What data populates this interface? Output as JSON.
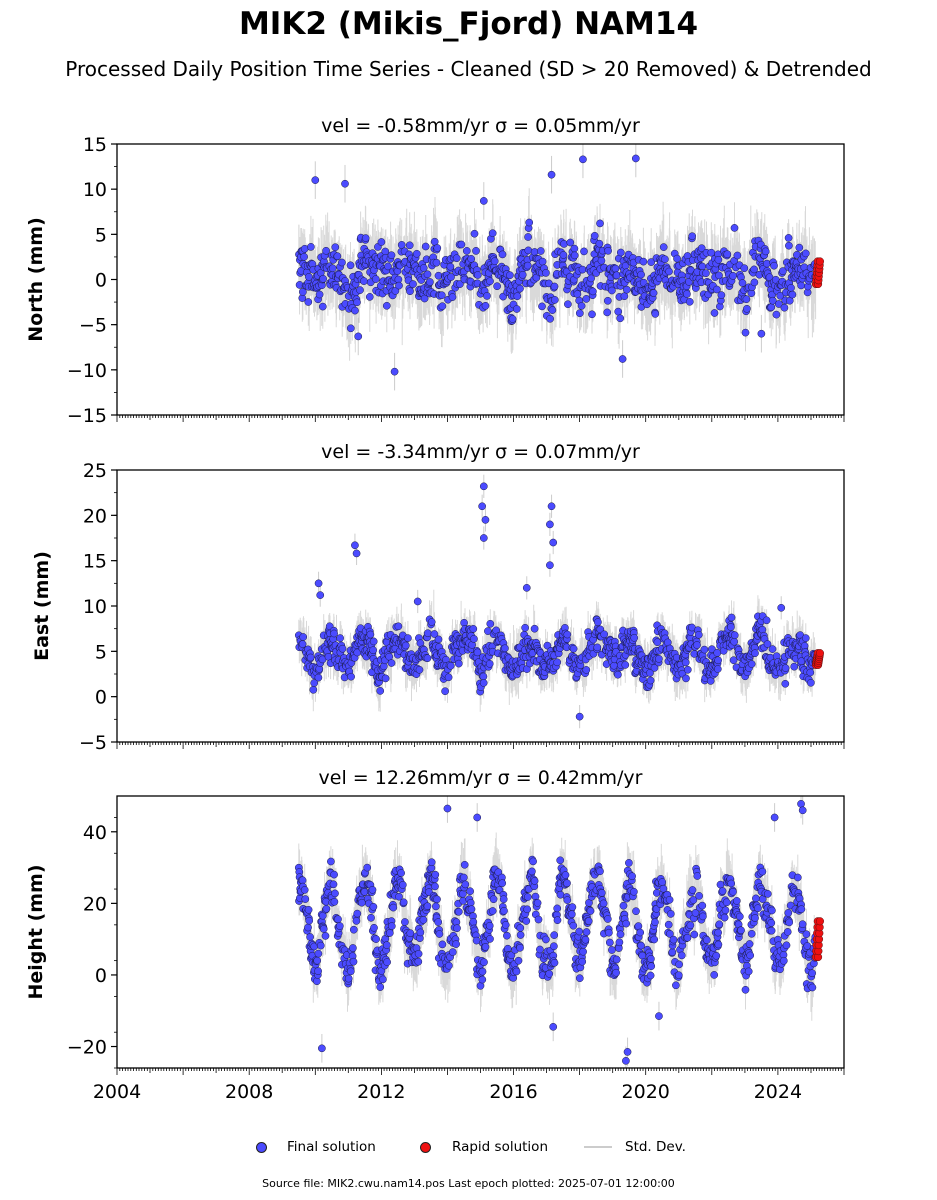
{
  "title": "MIK2 (Mikis_Fjord) NAM14",
  "subtitle": "Processed Daily Position Time Series - Cleaned (SD > 20 Removed) & Detrended",
  "legend": {
    "final": "Final solution",
    "rapid": "Rapid solution",
    "std": "Std. Dev."
  },
  "footer": "Source file: MIK2.cwu.nam14.pos  Last epoch plotted: 2025-07-01 12:00:00",
  "colors": {
    "final": "#4b4bff",
    "rapid": "#ee1111",
    "std": "#aaaaaa"
  },
  "chart_data": [
    {
      "type": "scatter",
      "title": "vel = -0.58mm/yr   σ = 0.05mm/yr",
      "ylabel": "North (mm)",
      "xlim": [
        2004,
        2026
      ],
      "ylim": [
        -15,
        15
      ],
      "yticks": [
        -15,
        -10,
        -5,
        0,
        5,
        10,
        15
      ],
      "data_start": 2009.5,
      "rapid_start": 2025.15,
      "data_end": 2025.5,
      "mean": 0.5,
      "noise": 2.6,
      "seasonal": 1.2,
      "outliers": [
        [
          2010.0,
          11.0
        ],
        [
          2010.9,
          10.6
        ],
        [
          2017.15,
          11.6
        ],
        [
          2018.1,
          13.3
        ],
        [
          2019.7,
          13.4
        ],
        [
          2015.1,
          8.7
        ],
        [
          2012.4,
          -10.2
        ],
        [
          2019.3,
          -8.8
        ],
        [
          2011.3,
          -6.3
        ],
        [
          2023.5,
          -6.0
        ]
      ],
      "rapid_range": [
        -0.5,
        2.0
      ],
      "grid": false,
      "legend": "bottom-center"
    },
    {
      "type": "scatter",
      "title": "vel = -3.34mm/yr   σ = 0.07mm/yr",
      "ylabel": "East (mm)",
      "xlim": [
        2004,
        2026
      ],
      "ylim": [
        -5,
        25
      ],
      "yticks": [
        -5,
        0,
        5,
        10,
        15,
        20,
        25
      ],
      "data_start": 2009.5,
      "rapid_start": 2025.15,
      "data_end": 2025.5,
      "mean": 4.8,
      "noise": 1.6,
      "seasonal": 1.6,
      "outliers": [
        [
          2010.1,
          12.5
        ],
        [
          2010.15,
          11.2
        ],
        [
          2011.2,
          16.7
        ],
        [
          2011.25,
          15.8
        ],
        [
          2015.1,
          23.2
        ],
        [
          2015.05,
          21.0
        ],
        [
          2015.15,
          19.5
        ],
        [
          2015.1,
          17.5
        ],
        [
          2017.15,
          21.0
        ],
        [
          2017.1,
          19.0
        ],
        [
          2017.2,
          17.0
        ],
        [
          2017.1,
          14.5
        ],
        [
          2018.0,
          -2.2
        ],
        [
          2016.4,
          12.0
        ],
        [
          2013.1,
          10.5
        ],
        [
          2024.1,
          9.8
        ]
      ],
      "rapid_range": [
        3.5,
        4.8
      ],
      "grid": false,
      "legend": "bottom-center"
    },
    {
      "type": "scatter",
      "title": "vel = 12.26mm/yr   σ = 0.42mm/yr",
      "ylabel": "Height (mm)",
      "xlim": [
        2004,
        2026
      ],
      "ylim": [
        -26,
        50
      ],
      "yticks": [
        -20,
        0,
        20,
        40
      ],
      "xticks": [
        2004,
        2008,
        2012,
        2016,
        2020,
        2024
      ],
      "data_start": 2009.5,
      "rapid_start": 2025.15,
      "data_end": 2025.5,
      "mean": 14.0,
      "noise": 5.0,
      "seasonal": 11.0,
      "outliers": [
        [
          2014.0,
          46.5
        ],
        [
          2014.9,
          44.0
        ],
        [
          2024.7,
          47.8
        ],
        [
          2024.75,
          46.0
        ],
        [
          2023.9,
          44.0
        ],
        [
          2010.2,
          -20.5
        ],
        [
          2019.4,
          -24.0
        ],
        [
          2019.45,
          -21.5
        ],
        [
          2020.4,
          -11.5
        ],
        [
          2017.2,
          -14.5
        ]
      ],
      "rapid_range": [
        5.0,
        15.0
      ],
      "grid": false,
      "legend": "bottom-center"
    }
  ]
}
